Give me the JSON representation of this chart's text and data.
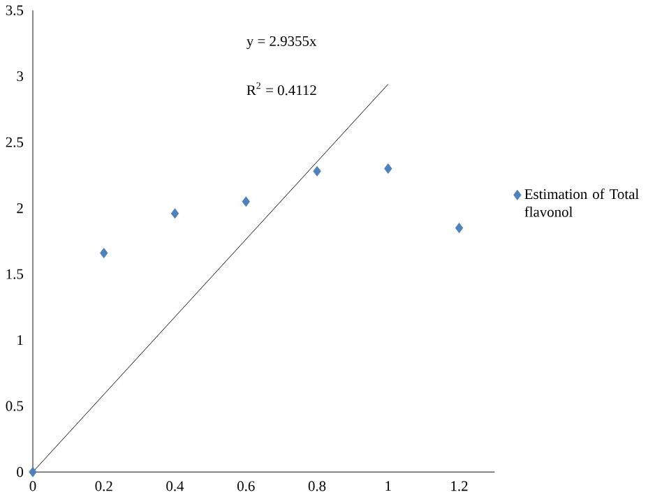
{
  "chart_data": {
    "type": "scatter",
    "x": [
      0,
      0.2,
      0.4,
      0.6,
      0.8,
      1.0,
      1.2
    ],
    "xlim": [
      0,
      1.3
    ],
    "xticks": [
      0,
      0.2,
      0.4,
      0.6,
      0.8,
      1,
      1.2
    ],
    "ylim": [
      0,
      3.5
    ],
    "yticks": [
      0,
      0.5,
      1,
      1.5,
      2,
      2.5,
      3,
      3.5
    ],
    "legend": "right",
    "grid": false,
    "series": [
      {
        "name": "Estimation of Total flavonol",
        "marker": "diamond",
        "color": "#4f81bd",
        "values": [
          0,
          1.66,
          1.96,
          2.05,
          2.28,
          2.3,
          1.85
        ]
      },
      {
        "type": "line",
        "x": [
          0,
          1
        ],
        "color": "#000000",
        "marker": "none",
        "values": [
          0,
          2.94
        ]
      }
    ],
    "annotations": [
      "y = 2.9355x",
      "R$^{2}$ = 0.4112"
    ]
  }
}
